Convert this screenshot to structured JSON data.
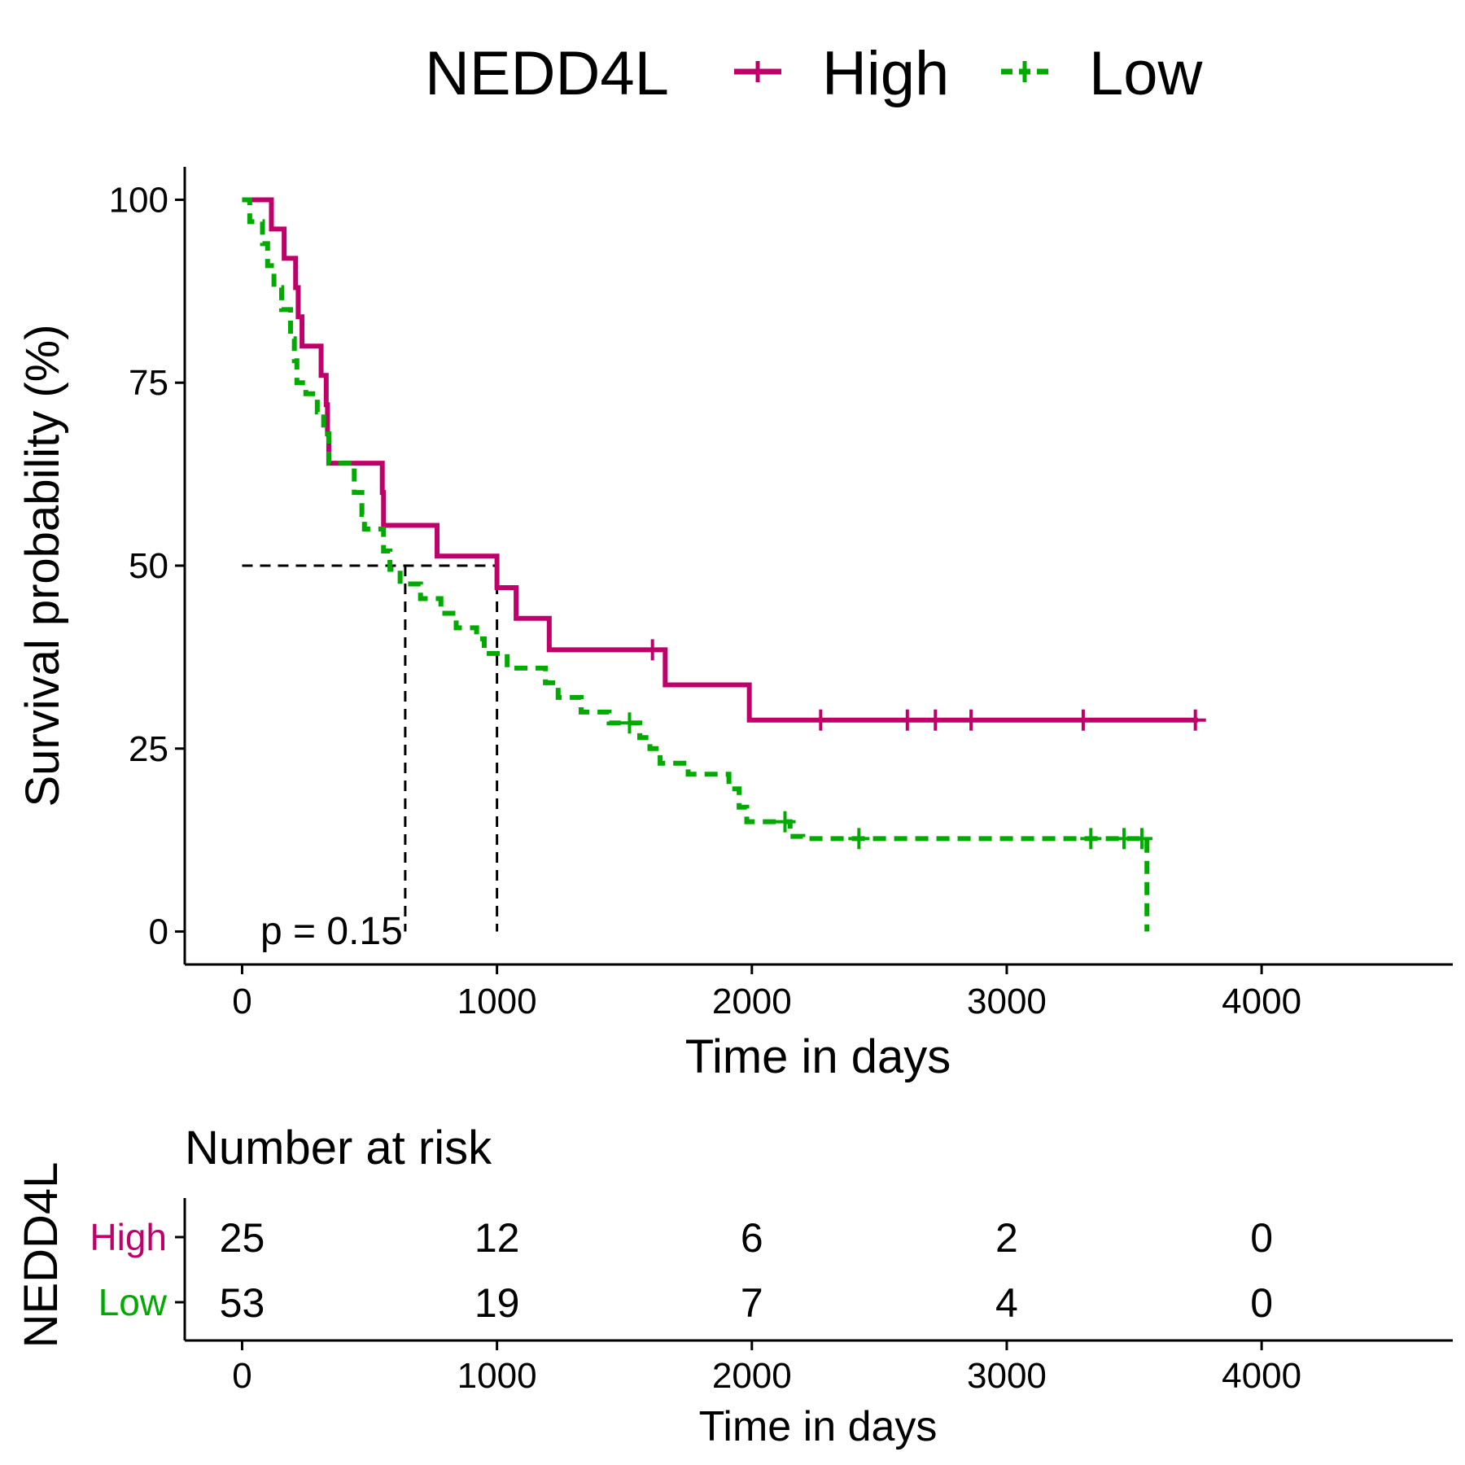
{
  "colors": {
    "high": "#C0006A",
    "low": "#00AA00",
    "axis": "#000000",
    "median_line": "#000000"
  },
  "legend": {
    "title": "NEDD4L",
    "entries": [
      {
        "label": "High",
        "color": "#C0006A",
        "dashed": false
      },
      {
        "label": "Low",
        "color": "#00AA00",
        "dashed": true
      }
    ]
  },
  "chart_data": [
    {
      "type": "line",
      "title": "",
      "xlabel": "Time in days",
      "ylabel": "Survival probability (%)",
      "xlim": [
        -225,
        4750
      ],
      "ylim": [
        -4.5,
        104.5
      ],
      "xticks": [
        0,
        1000,
        2000,
        3000,
        4000
      ],
      "xtick_labels": [
        "0",
        "1000",
        "2000",
        "3000",
        "4000"
      ],
      "yticks": [
        0,
        25,
        50,
        75,
        100
      ],
      "ytick_labels": [
        "0",
        "25",
        "50",
        "75",
        "100"
      ],
      "grid": false,
      "legend_position": "top",
      "annotation": "p = 0.15",
      "median_lines": {
        "y": 50,
        "x": [
          640,
          1000
        ]
      },
      "series": [
        {
          "name": "High",
          "color": "#C0006A",
          "dashed": false,
          "steps": [
            [
              0,
              100
            ],
            [
              115,
              96
            ],
            [
              165,
              92
            ],
            [
              210,
              88
            ],
            [
              220,
              84
            ],
            [
              235,
              80
            ],
            [
              310,
              76
            ],
            [
              330,
              72
            ],
            [
              335,
              68
            ],
            [
              340,
              64
            ],
            [
              550,
              60
            ],
            [
              555,
              55.5
            ],
            [
              765,
              51.3
            ],
            [
              1000,
              47
            ],
            [
              1075,
              42.8
            ],
            [
              1205,
              38.5
            ],
            [
              1660,
              33.7
            ],
            [
              1990,
              28.9
            ]
          ],
          "end_x": 3750,
          "censor": [
            [
              1610,
              38.5
            ],
            [
              2270,
              28.9
            ],
            [
              2610,
              28.9
            ],
            [
              2720,
              28.9
            ],
            [
              2860,
              28.9
            ],
            [
              3300,
              28.9
            ],
            [
              3740,
              28.9
            ]
          ]
        },
        {
          "name": "Low",
          "color": "#00AA00",
          "dashed": true,
          "steps": [
            [
              0,
              100
            ],
            [
              30,
              97
            ],
            [
              80,
              94
            ],
            [
              100,
              91
            ],
            [
              125,
              88
            ],
            [
              155,
              85
            ],
            [
              190,
              81
            ],
            [
              205,
              78
            ],
            [
              215,
              75
            ],
            [
              250,
              73.5
            ],
            [
              295,
              71
            ],
            [
              320,
              68
            ],
            [
              340,
              64
            ],
            [
              440,
              60
            ],
            [
              470,
              57
            ],
            [
              480,
              55
            ],
            [
              555,
              52
            ],
            [
              580,
              49.5
            ],
            [
              620,
              47.5
            ],
            [
              700,
              45.5
            ],
            [
              780,
              43.5
            ],
            [
              840,
              41.5
            ],
            [
              920,
              40
            ],
            [
              950,
              38
            ],
            [
              1040,
              36
            ],
            [
              1190,
              34
            ],
            [
              1240,
              32
            ],
            [
              1330,
              30
            ],
            [
              1440,
              28.5
            ],
            [
              1560,
              26.5
            ],
            [
              1600,
              25
            ],
            [
              1640,
              23
            ],
            [
              1750,
              21.5
            ],
            [
              1910,
              19.5
            ],
            [
              1950,
              17
            ],
            [
              1980,
              15
            ],
            [
              2150,
              13
            ],
            [
              2200,
              12.7
            ],
            [
              3550,
              0
            ]
          ],
          "end_x": 3550,
          "censor": [
            [
              1520,
              28.5
            ],
            [
              2130,
              15
            ],
            [
              2420,
              12.7
            ],
            [
              3330,
              12.7
            ],
            [
              3460,
              12.7
            ],
            [
              3530,
              12.7
            ]
          ]
        }
      ]
    },
    {
      "type": "table",
      "title": "Number at risk",
      "xlabel": "Time in days",
      "ylabel": "NEDD4L",
      "xticks": [
        0,
        1000,
        2000,
        3000,
        4000
      ],
      "xtick_labels": [
        "0",
        "1000",
        "2000",
        "3000",
        "4000"
      ],
      "rows": [
        {
          "name": "High",
          "color": "#C0006A",
          "values": [
            "25",
            "12",
            "6",
            "2",
            "0"
          ]
        },
        {
          "name": "Low",
          "color": "#00AA00",
          "values": [
            "53",
            "19",
            "7",
            "4",
            "0"
          ]
        }
      ]
    }
  ]
}
